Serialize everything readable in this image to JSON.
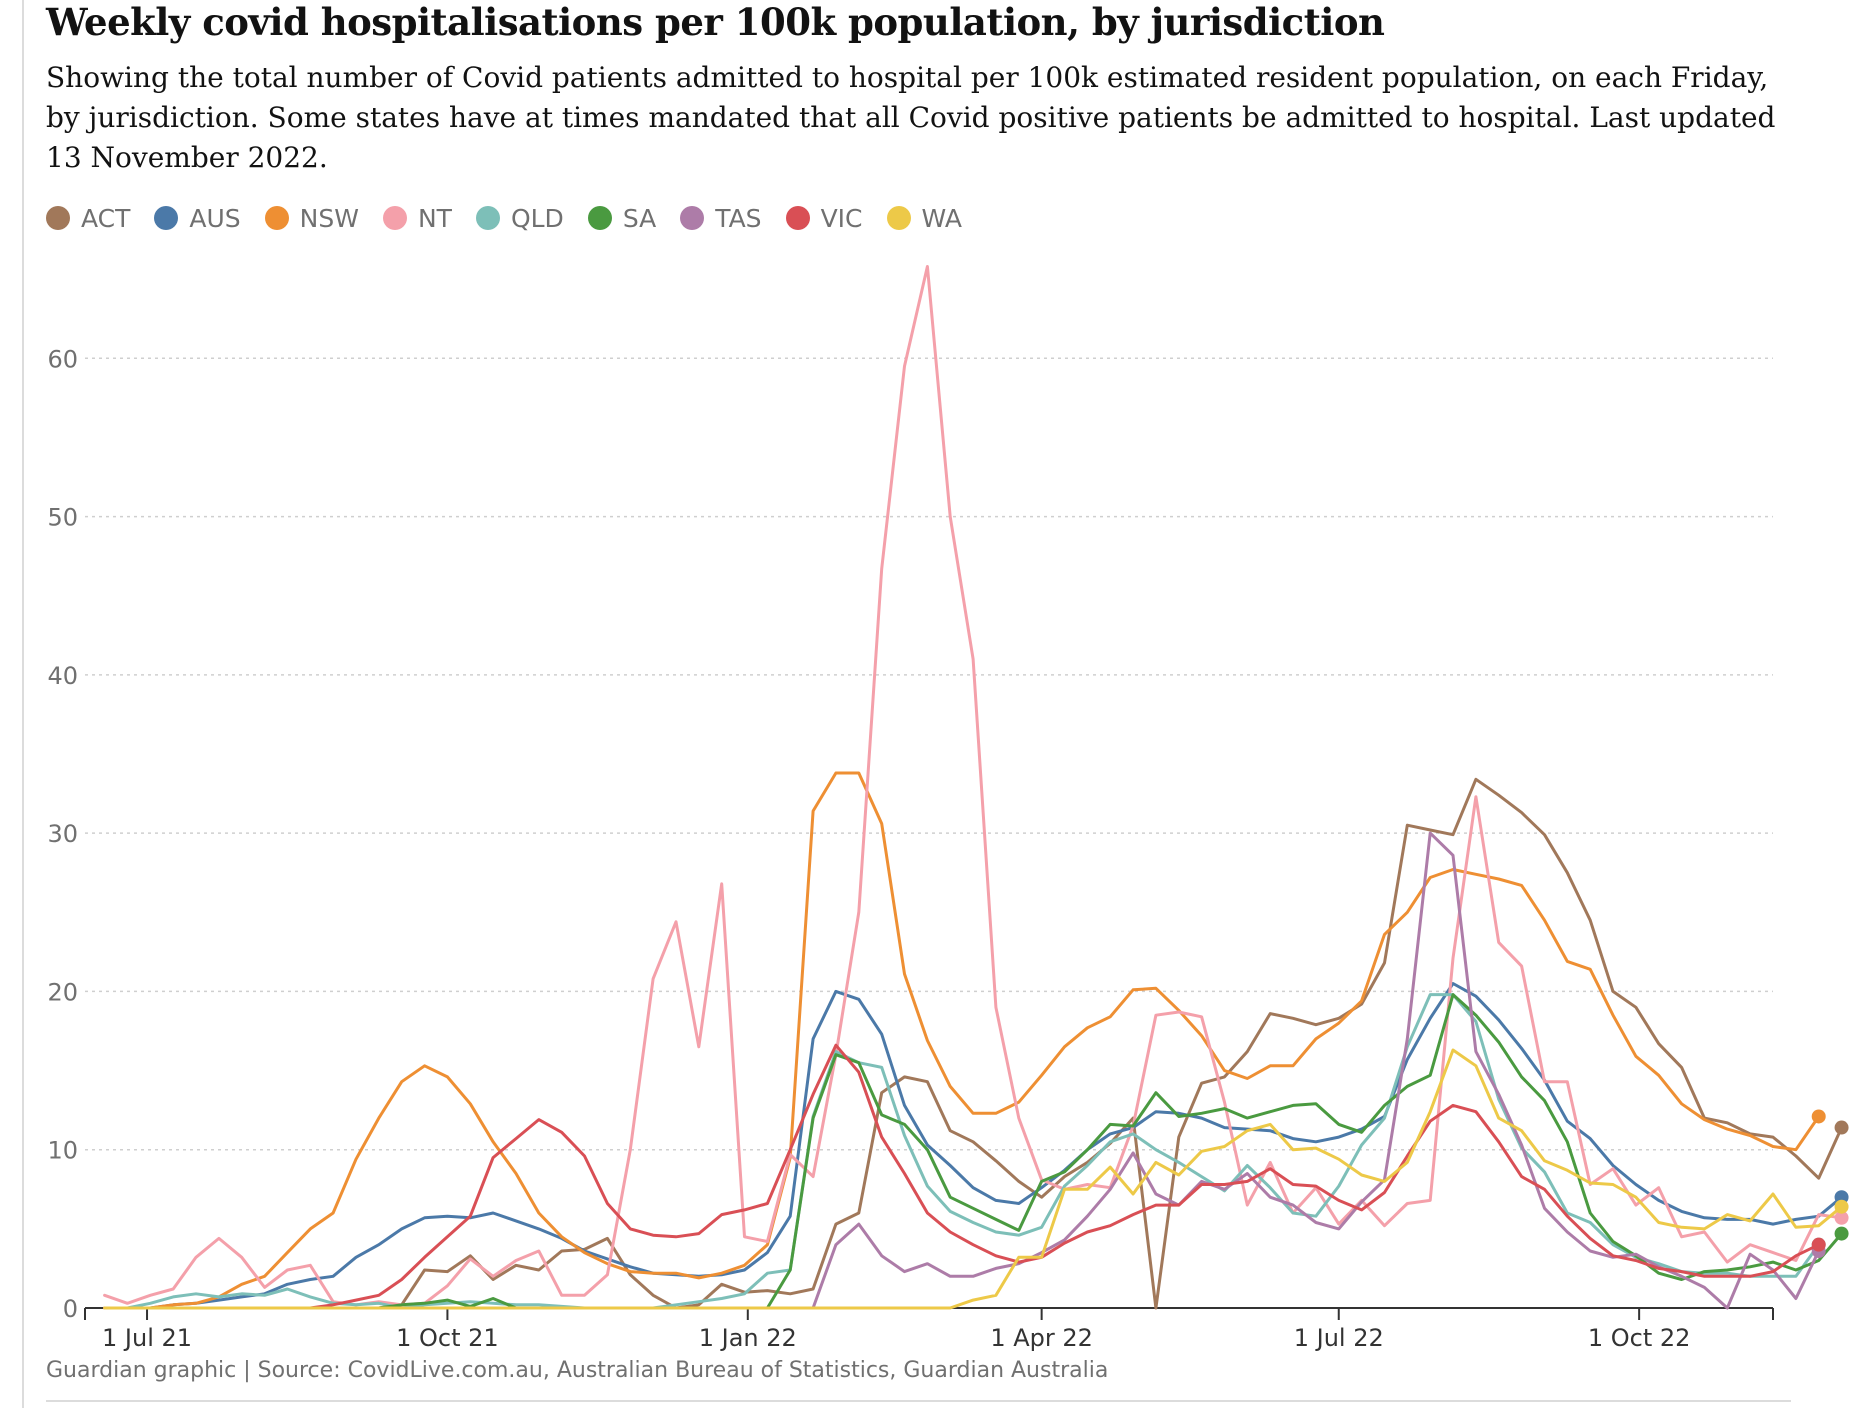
{
  "title": "Weekly covid hospitalisations per 100k population, by jurisdiction",
  "subtitle": "Showing the total number of Covid patients admitted to hospital per 100k estimated resident population, on each Friday, by jurisdiction. Some states have at times mandated that all Covid positive patients be admitted to hospital. Last updated 13 November 2022.",
  "source": "Guardian graphic | Source: CovidLive.com.au, Australian Bureau of Statistics, Guardian Australia",
  "chart_data": {
    "type": "line",
    "title": "Weekly covid hospitalisations per 100k population, by jurisdiction",
    "xlabel": "",
    "ylabel": "",
    "x_start": "2021-06-18",
    "x_step_days": 7,
    "xlim": [
      "2021-06-12",
      "2022-11-11"
    ],
    "ylim": [
      0,
      70
    ],
    "yticks": [
      0,
      10,
      20,
      30,
      40,
      50,
      60
    ],
    "xticks": [
      {
        "label": "1 Jul 21",
        "date": "2021-07-01"
      },
      {
        "label": "1 Oct 21",
        "date": "2021-10-01"
      },
      {
        "label": "1 Jan 22",
        "date": "2022-01-01"
      },
      {
        "label": "1 Apr 22",
        "date": "2022-04-01"
      },
      {
        "label": "1 Jul 22",
        "date": "2022-07-01"
      },
      {
        "label": "1 Oct 22",
        "date": "2022-10-01"
      }
    ],
    "grid": "horizontal dotted",
    "legend_position": "top",
    "series": [
      {
        "name": "ACT",
        "color": "#a1785a",
        "values": [
          0,
          0,
          0,
          0,
          0,
          0,
          0,
          0,
          0,
          0,
          0,
          0,
          0,
          0.2,
          2.4,
          2.3,
          3.3,
          1.8,
          2.7,
          2.4,
          3.6,
          3.7,
          4.4,
          2.1,
          0.8,
          0,
          0.2,
          1.5,
          1.0,
          1.1,
          0.9,
          1.2,
          5.3,
          6.0,
          13.6,
          14.6,
          14.3,
          11.2,
          10.5,
          9.3,
          8.0,
          7.0,
          8.3,
          9.2,
          10.4,
          12.0,
          0,
          10.8,
          14.2,
          14.6,
          16.2,
          18.6,
          18.3,
          17.9,
          18.3,
          19.2,
          21.8,
          30.5,
          30.2,
          29.9,
          33.4,
          32.4,
          31.3,
          29.9,
          27.5,
          24.5,
          20.0,
          19.0,
          16.7,
          15.2,
          12.0,
          11.7,
          11.0,
          10.8,
          9.6,
          8.2,
          11.4
        ]
      },
      {
        "name": "AUS",
        "color": "#4b79a8",
        "values": [
          0,
          0,
          0,
          0.2,
          0.3,
          0.5,
          0.7,
          0.9,
          1.5,
          1.8,
          2.0,
          3.2,
          4.0,
          5.0,
          5.7,
          5.8,
          5.7,
          6.0,
          5.5,
          5.0,
          4.4,
          3.6,
          3.1,
          2.6,
          2.2,
          2.1,
          2.0,
          2.1,
          2.4,
          3.5,
          5.8,
          17.0,
          20.0,
          19.5,
          17.3,
          12.8,
          10.3,
          9.0,
          7.6,
          6.8,
          6.6,
          7.6,
          8.7,
          10.0,
          11.0,
          11.4,
          12.4,
          12.3,
          12.0,
          11.4,
          11.3,
          11.2,
          10.7,
          10.5,
          10.8,
          11.3,
          12.1,
          15.7,
          18.3,
          20.5,
          19.7,
          18.2,
          16.4,
          14.4,
          11.8,
          10.7,
          9.0,
          7.8,
          6.8,
          6.1,
          5.7,
          5.6,
          5.6,
          5.3,
          5.6,
          5.8,
          7.0
        ]
      },
      {
        "name": "NSW",
        "color": "#ee8f33",
        "values": [
          0,
          0,
          0,
          0.2,
          0.3,
          0.7,
          1.5,
          2.0,
          3.5,
          5.0,
          6.0,
          9.4,
          12.0,
          14.3,
          15.3,
          14.6,
          12.9,
          10.5,
          8.5,
          6.0,
          4.5,
          3.5,
          2.8,
          2.3,
          2.2,
          2.2,
          1.9,
          2.2,
          2.7,
          4.0,
          9.5,
          31.4,
          33.8,
          33.8,
          30.6,
          21.1,
          16.9,
          14.0,
          12.3,
          12.3,
          13.0,
          14.7,
          16.5,
          17.7,
          18.4,
          20.1,
          20.2,
          18.8,
          17.2,
          15.0,
          14.5,
          15.3,
          15.3,
          17.0,
          18.0,
          19.4,
          23.6,
          25.0,
          27.2,
          27.7,
          27.4,
          27.1,
          26.7,
          24.5,
          21.9,
          21.4,
          18.5,
          15.9,
          14.7,
          12.9,
          11.9,
          11.3,
          10.9,
          10.2,
          10.0,
          12.1
        ]
      },
      {
        "name": "NT",
        "color": "#f4a0aa",
        "values": [
          0.8,
          0.3,
          0.8,
          1.2,
          3.2,
          4.4,
          3.2,
          1.3,
          2.4,
          2.7,
          0.4,
          0.2,
          0.4,
          0.2,
          0.3,
          1.4,
          3.1,
          2.0,
          3.0,
          3.6,
          0.8,
          0.8,
          2.1,
          10.0,
          20.8,
          24.4,
          16.5,
          26.8,
          4.5,
          4.2,
          9.7,
          8.3,
          16.0,
          25.0,
          46.7,
          59.5,
          65.8,
          50.0,
          41.0,
          19.0,
          12.0,
          8.1,
          7.5,
          7.8,
          7.6,
          11.5,
          18.5,
          18.7,
          18.4,
          13.0,
          6.5,
          9.2,
          6.0,
          7.6,
          5.3,
          6.8,
          5.2,
          6.6,
          6.8,
          22.1,
          32.3,
          23.1,
          21.6,
          14.3,
          14.3,
          7.8,
          8.8,
          6.5,
          7.6,
          4.5,
          4.8,
          2.9,
          4.0,
          3.5,
          3.0,
          5.9,
          5.7
        ]
      },
      {
        "name": "QLD",
        "color": "#7dbfb8",
        "values": [
          0,
          0,
          0.3,
          0.7,
          0.9,
          0.7,
          0.9,
          0.8,
          1.2,
          0.7,
          0.3,
          0.2,
          0.3,
          0,
          0.2,
          0.3,
          0.4,
          0.3,
          0.2,
          0.2,
          0.1,
          0,
          0,
          0,
          0,
          0.2,
          0.4,
          0.6,
          0.9,
          2.2,
          2.4,
          12.1,
          16.2,
          15.5,
          15.2,
          10.9,
          7.7,
          6.1,
          5.4,
          4.8,
          4.6,
          5.1,
          7.7,
          9.0,
          10.5,
          11.0,
          10.0,
          9.2,
          8.3,
          7.4,
          9.0,
          7.6,
          6.0,
          5.8,
          7.7,
          10.3,
          12.0,
          16.5,
          19.8,
          19.8,
          18.1,
          13.2,
          10.1,
          8.6,
          6.0,
          5.4,
          4.0,
          3.2,
          2.8,
          2.3,
          2.2,
          2.2,
          2.0,
          2.0,
          2.0,
          4.0
        ]
      },
      {
        "name": "SA",
        "color": "#4a9a40",
        "values": [
          0,
          0,
          0,
          0,
          0,
          0,
          0,
          0,
          0,
          0,
          0,
          0,
          0,
          0.2,
          0.3,
          0.5,
          0.1,
          0.6,
          0,
          0,
          0,
          0,
          0,
          0,
          0,
          0,
          0,
          0,
          0,
          0,
          2.4,
          12.0,
          16.0,
          15.5,
          12.2,
          11.6,
          10.0,
          7.0,
          6.3,
          5.6,
          4.9,
          8.0,
          8.6,
          10.0,
          11.6,
          11.5,
          13.6,
          12.1,
          12.3,
          12.6,
          12.0,
          12.4,
          12.8,
          12.9,
          11.6,
          11.1,
          12.8,
          14.0,
          14.7,
          19.8,
          18.5,
          16.8,
          14.6,
          13.1,
          10.5,
          6.0,
          4.2,
          3.3,
          2.2,
          1.8,
          2.3,
          2.4,
          2.6,
          2.9,
          2.4,
          3.0,
          4.7
        ]
      },
      {
        "name": "TAS",
        "color": "#ad7ca8",
        "values": [
          0,
          0,
          0,
          0,
          0,
          0,
          0,
          0,
          0,
          0,
          0,
          0,
          0,
          0,
          0,
          0,
          0,
          0,
          0,
          0,
          0,
          0,
          0,
          0,
          0,
          0,
          0,
          0,
          0,
          0,
          0,
          0,
          4.0,
          5.3,
          3.3,
          2.3,
          2.8,
          2.0,
          2.0,
          2.5,
          2.8,
          3.5,
          4.3,
          5.8,
          7.5,
          9.8,
          7.2,
          6.5,
          8.0,
          7.5,
          8.5,
          7.0,
          6.5,
          5.4,
          5.0,
          6.7,
          8.1,
          17.0,
          30.0,
          28.6,
          16.2,
          13.5,
          10.3,
          6.3,
          4.8,
          3.6,
          3.2,
          3.4,
          2.6,
          2.0,
          1.3,
          0,
          3.4,
          2.4,
          0.6,
          3.6
        ]
      },
      {
        "name": "VIC",
        "color": "#d94f55",
        "values": [
          0,
          0,
          0,
          0,
          0,
          0,
          0,
          0,
          0,
          0,
          0.2,
          0.5,
          0.8,
          1.8,
          3.2,
          4.5,
          5.8,
          9.5,
          10.7,
          11.9,
          11.1,
          9.6,
          6.6,
          5.0,
          4.6,
          4.5,
          4.7,
          5.9,
          6.2,
          6.6,
          10.0,
          13.5,
          16.6,
          14.9,
          10.8,
          8.5,
          6.0,
          4.8,
          4.0,
          3.3,
          2.9,
          3.2,
          4.1,
          4.8,
          5.2,
          5.9,
          6.5,
          6.5,
          7.8,
          7.8,
          8.0,
          8.8,
          7.8,
          7.7,
          6.8,
          6.2,
          7.3,
          9.6,
          11.8,
          12.8,
          12.4,
          10.5,
          8.3,
          7.5,
          5.8,
          4.4,
          3.3,
          3.0,
          2.5,
          2.3,
          2.0,
          2.0,
          2.0,
          2.3,
          3.3,
          4.0
        ]
      },
      {
        "name": "WA",
        "color": "#edc948",
        "values": [
          0,
          0,
          0,
          0,
          0,
          0,
          0,
          0,
          0,
          0,
          0,
          0,
          0,
          0,
          0,
          0,
          0,
          0,
          0,
          0,
          0,
          0,
          0,
          0,
          0,
          0,
          0,
          0,
          0,
          0,
          0,
          0,
          0,
          0,
          0,
          0,
          0,
          0,
          0.5,
          0.8,
          3.2,
          3.2,
          7.5,
          7.5,
          8.9,
          7.2,
          9.2,
          8.4,
          9.9,
          10.2,
          11.2,
          11.6,
          10.0,
          10.1,
          9.4,
          8.4,
          8.0,
          9.2,
          12.4,
          16.3,
          15.3,
          12.0,
          11.2,
          9.3,
          8.7,
          7.9,
          7.8,
          7.0,
          5.4,
          5.1,
          5.0,
          5.9,
          5.5,
          7.2,
          5.1,
          5.2,
          6.4
        ]
      }
    ]
  }
}
